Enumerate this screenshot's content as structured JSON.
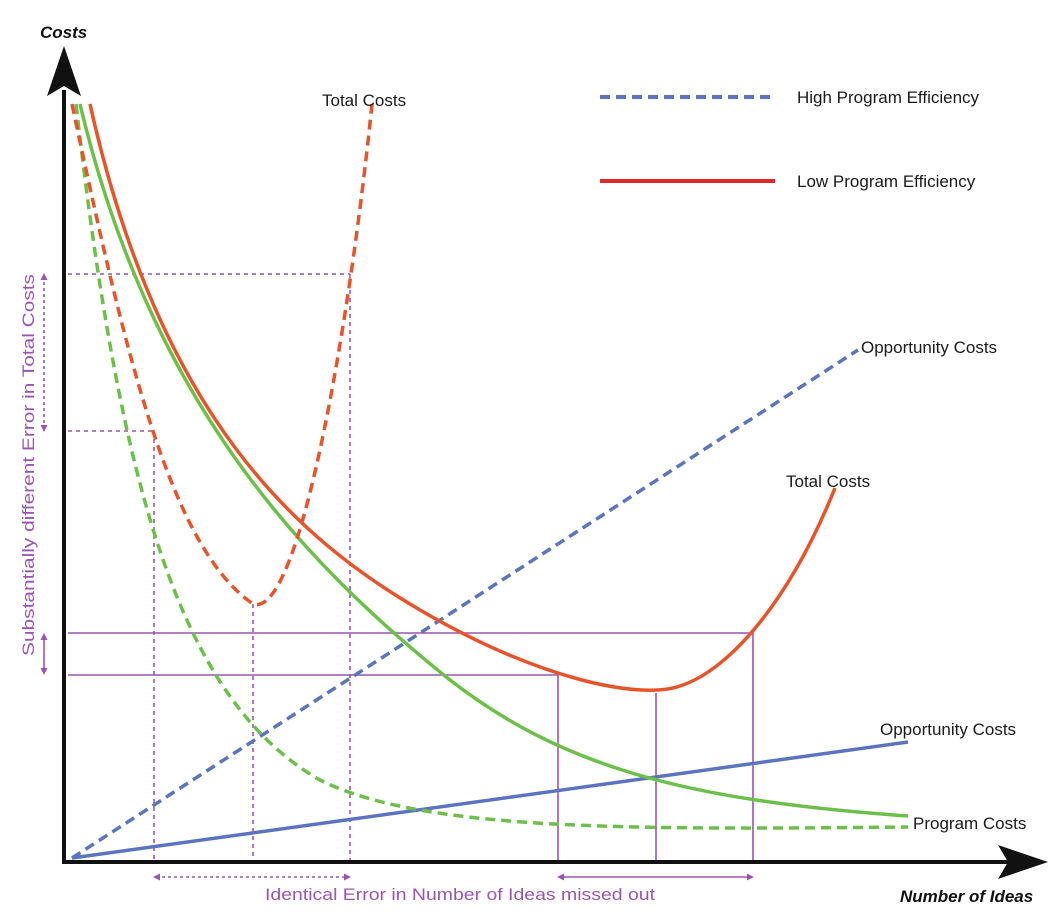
{
  "axes": {
    "y_title": "Costs",
    "x_title": "Number of Ideas"
  },
  "legend": {
    "high": "High Program Efficiency",
    "low": "Low Program Efficiency"
  },
  "labels": {
    "total_costs_high": "Total Costs",
    "total_costs_low": "Total Costs",
    "opportunity_costs_high": "Opportunity Costs",
    "opportunity_costs_low": "Opportunity Costs",
    "program_costs": "Program Costs"
  },
  "annotations": {
    "vertical_error": "Substantially different Error in Total Costs",
    "horizontal_error": "Identical Error in Number of Ideas missed out"
  },
  "colors": {
    "axis": "#111111",
    "total_costs": "#e8542a",
    "program_costs": "#6cc04a",
    "opportunity_costs": "#5b74bf",
    "guides": "#9a55b0",
    "legend_low": "#e02a2a",
    "legend_high": "#5b74bf"
  }
}
